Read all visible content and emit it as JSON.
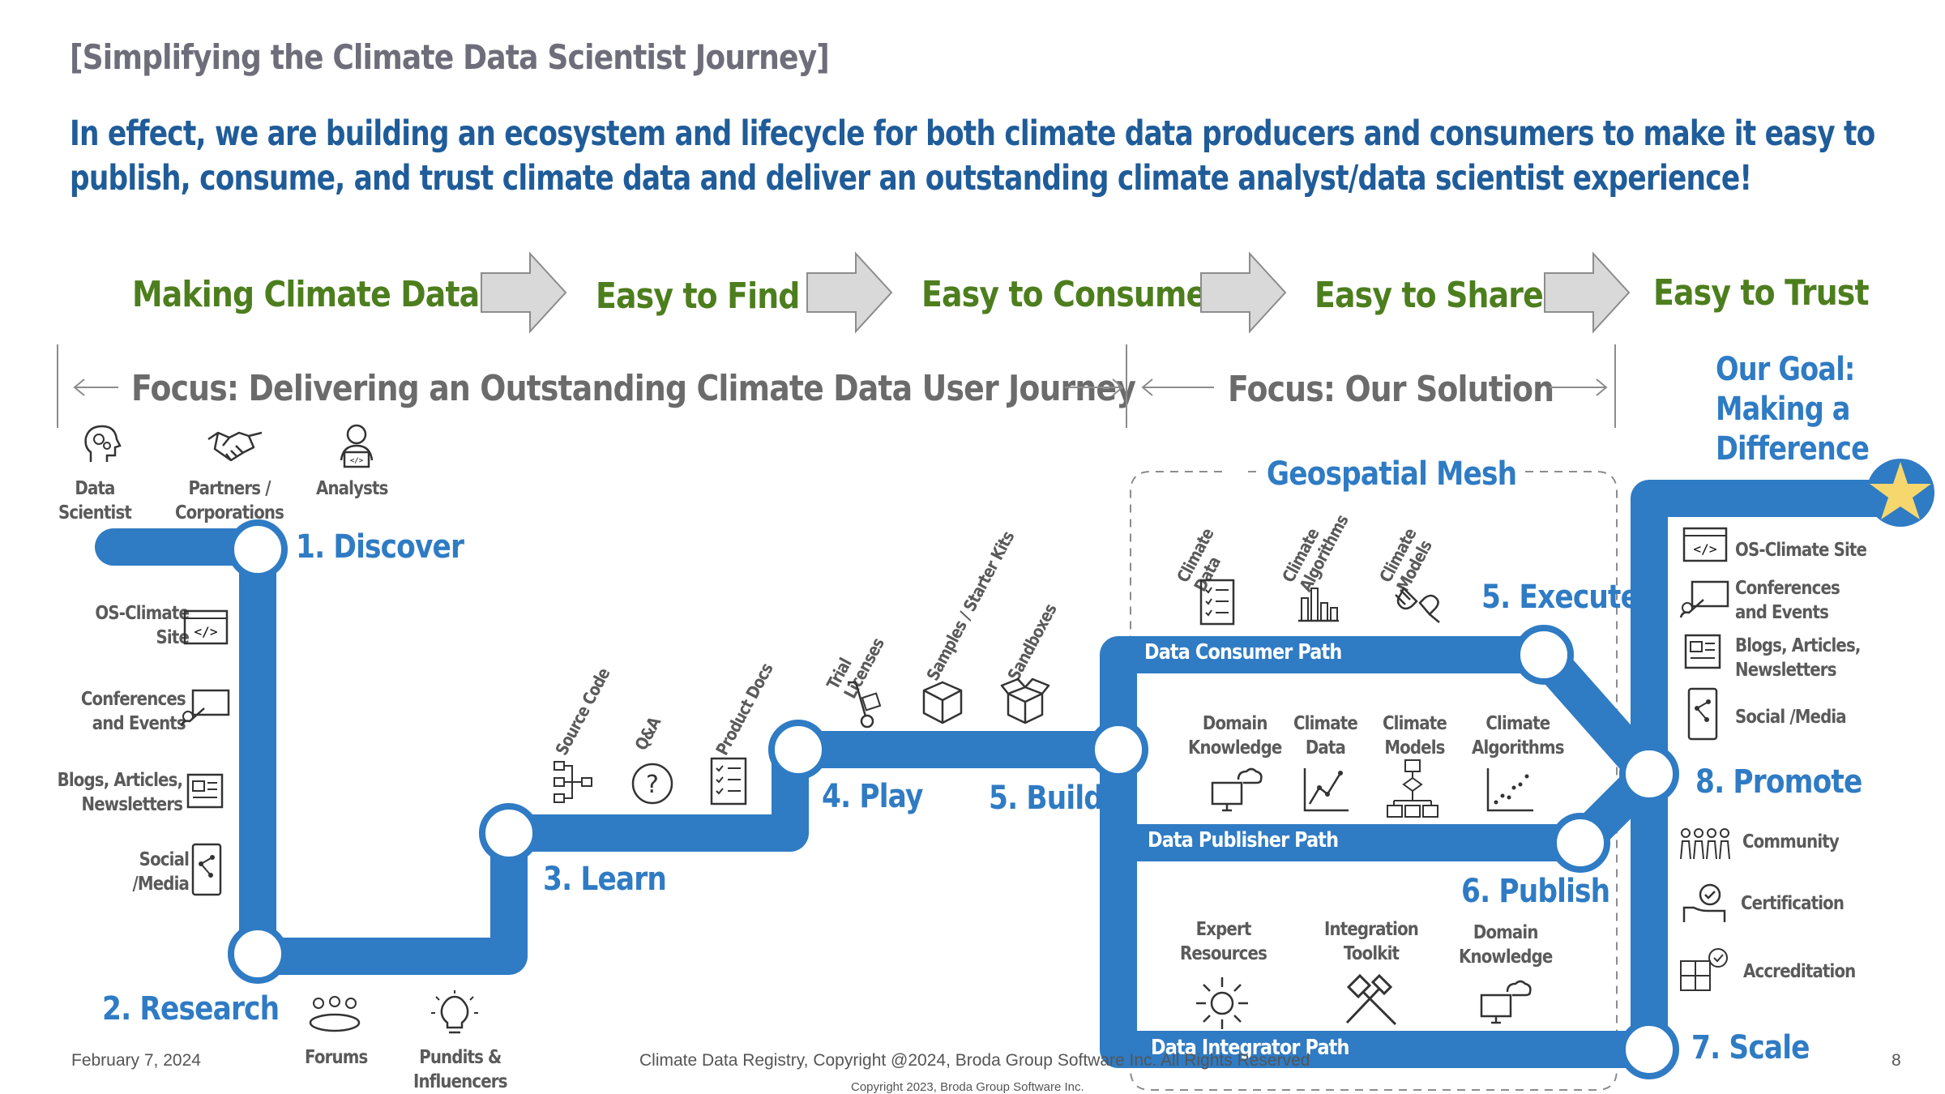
{
  "title": "[Simplifying the Climate Data Scientist Journey]",
  "headline": {
    "line1": "In effect, we are building an ecosystem and lifecycle for both climate data producers and consumers to make it easy to",
    "line2": "publish, consume, and trust climate data and deliver an outstanding climate analyst/data scientist experience!"
  },
  "making": {
    "lead": "Making Climate Data:",
    "stages": [
      "Easy to Find",
      "Easy to Consume",
      "Easy to Share",
      "Easy to Trust"
    ]
  },
  "focus": {
    "journey": "Focus: Delivering an Outstanding Climate Data User Journey",
    "solution": "Focus: Our Solution",
    "goal": [
      "Our Goal:",
      "Making a",
      "Difference"
    ]
  },
  "personas": [
    {
      "label": "Data\nScientist",
      "icon": "data-scientist-icon"
    },
    {
      "label": "Partners /\nCorporations",
      "icon": "handshake-icon"
    },
    {
      "label": "Analysts",
      "icon": "analyst-icon"
    }
  ],
  "steps": {
    "discover": "1. Discover",
    "research": "2. Research",
    "learn": "3. Learn",
    "play": "4. Play",
    "build": "5. Build",
    "execute": "5. Execute",
    "publish": "6. Publish",
    "scale": "7. Scale",
    "promote": "8. Promote"
  },
  "research_channels": [
    "OS-Climate\nSite",
    "Conferences\nand Events",
    "Blogs, Articles,\nNewsletters",
    "Social\n/Media"
  ],
  "research_bottom": [
    "Forums",
    "Pundits &\nInfluencers"
  ],
  "learn_items": [
    "Source Code",
    "Q&A",
    "Product Docs"
  ],
  "play_items": [
    "Trial\nLicenses",
    "Samples / Starter Kits",
    "Sandboxes"
  ],
  "mesh": {
    "title": "Geospatial Mesh",
    "consumer_items": [
      "Climate\nData",
      "Climate\nAlgorithms",
      "Climate\nModels"
    ],
    "consumer_path": "Data Consumer Path",
    "publisher_items": [
      "Domain\nKnowledge",
      "Climate\nData",
      "Climate\nModels",
      "Climate\nAlgorithms"
    ],
    "publisher_path": "Data Publisher Path",
    "integrator_items": [
      "Expert\nResources",
      "Integration\nToolkit",
      "Domain\nKnowledge"
    ],
    "integrator_path": "Data Integrator Path"
  },
  "promote_channels": [
    "OS-Climate Site",
    "Conferences\nand Events",
    "Blogs, Articles,\nNewsletters",
    "Social /Media"
  ],
  "scale_items": [
    "Community",
    "Certification",
    "Accreditation"
  ],
  "footer": {
    "date": "February 7, 2024",
    "copyright": "Climate Data Registry, Copyright @2024, Broda Group Software Inc. All Rights Reserved",
    "copyright2": "Copyright 2023, Broda Group Software Inc.",
    "page": "8"
  },
  "colors": {
    "path_blue": "#2f7bc4",
    "title_blue": "#1f5c99",
    "green": "#4d7e1e",
    "gray_text": "#6b6b6b",
    "star": "#f5d76e"
  }
}
